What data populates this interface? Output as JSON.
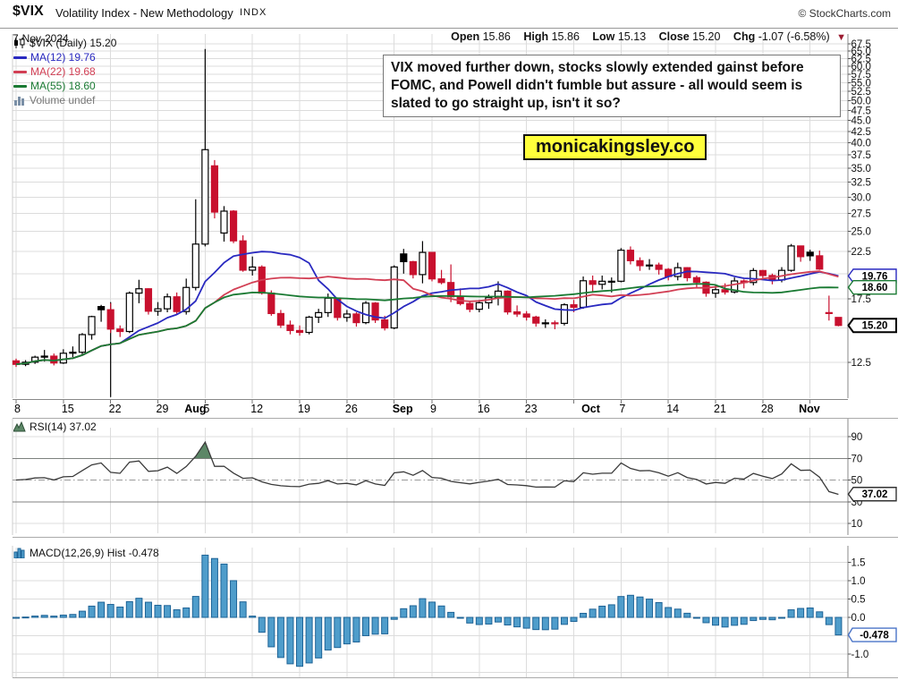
{
  "header": {
    "symbol": "$VIX",
    "name": "Volatility Index - New Methodology",
    "exchange": "INDX",
    "date": "7-Nov-2024",
    "copyright": "© StockCharts.com",
    "quote": {
      "open_label": "Open",
      "open": "15.86",
      "high_label": "High",
      "high": "15.86",
      "low_label": "Low",
      "low": "15.13",
      "close_label": "Close",
      "close": "15.20",
      "chg_label": "Chg",
      "chg": "-1.07 (-6.58%)",
      "direction": "▼"
    }
  },
  "legend": {
    "price": "$VIX (Daily) 15.20",
    "ma12": "MA(12) 19.76",
    "ma22": "MA(22) 19.68",
    "ma55": "MA(55) 18.60",
    "volume": "Volume undef"
  },
  "rsi_label": "RSI(14) 37.02",
  "macd_label": "MACD(12,26,9) Hist -0.478",
  "annotation": {
    "text": "VIX moved further down, stocks slowly extended gainst before FOMC, and Powell didn't fumble but assure - all would seem is slated to go straight up, isn't it so?"
  },
  "badge": {
    "text": "monicakingsley.co"
  },
  "tags": {
    "ma12": "19.76",
    "ma55": "18.60",
    "close": "15.20",
    "rsi": "37.02",
    "macd": "-0.478"
  },
  "colors": {
    "candle_black": "#000000",
    "candle_red": "#c8102e",
    "candle_white": "#ffffff",
    "ma12": "#2929c0",
    "ma22": "#d23f54",
    "ma55": "#1a7a33",
    "rsi_line": "#3a3a3a",
    "rsi_fill": "#5c8767",
    "macd_bar": "#4f9dcb",
    "macd_bar_edge": "#1e6396",
    "grid": "#dcdcdc",
    "axis": "#888888",
    "band_line": "#808080",
    "text": "#111111",
    "tag_close": "#000000",
    "tag_rsi": "#333333",
    "tag_macd": "#4a74c8",
    "badge_bg": "#ffff3b",
    "chg_arrow": "#9b1c31"
  },
  "chart_data": {
    "type": "candlestick",
    "title": "$VIX (Daily)",
    "last_close": 15.2,
    "dates": [
      "Jul 8",
      "Jul 9",
      "Jul 10",
      "Jul 11",
      "Jul 12",
      "Jul 15",
      "Jul 16",
      "Jul 17",
      "Jul 18",
      "Jul 19",
      "Jul 22",
      "Jul 23",
      "Jul 24",
      "Jul 25",
      "Jul 26",
      "Jul 29",
      "Jul 30",
      "Jul 31",
      "Aug 1",
      "Aug 2",
      "Aug 5",
      "Aug 6",
      "Aug 7",
      "Aug 8",
      "Aug 9",
      "Aug 12",
      "Aug 13",
      "Aug 14",
      "Aug 15",
      "Aug 16",
      "Aug 19",
      "Aug 20",
      "Aug 21",
      "Aug 22",
      "Aug 23",
      "Aug 26",
      "Aug 27",
      "Aug 28",
      "Aug 29",
      "Aug 30",
      "Sep 3",
      "Sep 4",
      "Sep 5",
      "Sep 6",
      "Sep 9",
      "Sep 10",
      "Sep 11",
      "Sep 12",
      "Sep 13",
      "Sep 16",
      "Sep 17",
      "Sep 18",
      "Sep 19",
      "Sep 20",
      "Sep 23",
      "Sep 24",
      "Sep 25",
      "Sep 26",
      "Sep 27",
      "Sep 30",
      "Oct 1",
      "Oct 2",
      "Oct 3",
      "Oct 4",
      "Oct 7",
      "Oct 8",
      "Oct 9",
      "Oct 10",
      "Oct 11",
      "Oct 14",
      "Oct 15",
      "Oct 16",
      "Oct 17",
      "Oct 18",
      "Oct 21",
      "Oct 22",
      "Oct 23",
      "Oct 24",
      "Oct 25",
      "Oct 28",
      "Oct 29",
      "Oct 30",
      "Oct 31",
      "Nov 1",
      "Nov 4",
      "Nov 5",
      "Nov 6",
      "Nov 7"
    ],
    "candles": [
      [
        12.6,
        12.75,
        12.2,
        12.37
      ],
      [
        12.37,
        12.65,
        12.25,
        12.51
      ],
      [
        12.51,
        12.95,
        12.4,
        12.85
      ],
      [
        12.85,
        13.35,
        12.55,
        12.92
      ],
      [
        12.92,
        13.1,
        12.3,
        12.46
      ],
      [
        12.46,
        13.4,
        12.4,
        13.12
      ],
      [
        13.12,
        13.6,
        12.85,
        13.19
      ],
      [
        13.19,
        14.6,
        13.0,
        14.48
      ],
      [
        14.48,
        16.0,
        14.1,
        15.93
      ],
      [
        16.8,
        16.95,
        15.5,
        16.52
      ],
      [
        16.52,
        17.1,
        14.6,
        14.91
      ],
      [
        14.91,
        15.2,
        14.3,
        14.72
      ],
      [
        14.72,
        18.2,
        14.6,
        18.04
      ],
      [
        18.04,
        19.36,
        17.1,
        18.46
      ],
      [
        18.46,
        18.5,
        16.1,
        16.39
      ],
      [
        16.39,
        17.2,
        16.0,
        16.6
      ],
      [
        16.6,
        18.0,
        16.3,
        17.69
      ],
      [
        17.69,
        18.1,
        16.1,
        16.36
      ],
      [
        16.36,
        19.48,
        16.1,
        18.59
      ],
      [
        18.59,
        29.66,
        18.3,
        23.39
      ],
      [
        23.39,
        65.73,
        23.1,
        38.57
      ],
      [
        35.4,
        36.5,
        26.8,
        27.71
      ],
      [
        24.8,
        28.6,
        23.7,
        27.85
      ],
      [
        27.85,
        28.0,
        23.5,
        23.79
      ],
      [
        23.79,
        24.5,
        20.2,
        20.37
      ],
      [
        20.37,
        21.9,
        19.8,
        20.71
      ],
      [
        20.71,
        20.9,
        17.9,
        18.04
      ],
      [
        18.04,
        18.3,
        16.0,
        16.19
      ],
      [
        16.19,
        16.5,
        15.0,
        15.23
      ],
      [
        15.23,
        15.6,
        14.5,
        14.8
      ],
      [
        14.8,
        15.2,
        14.4,
        14.65
      ],
      [
        14.65,
        16.0,
        14.5,
        15.88
      ],
      [
        15.88,
        16.6,
        15.4,
        16.27
      ],
      [
        16.27,
        18.0,
        15.9,
        17.56
      ],
      [
        17.56,
        17.6,
        15.6,
        15.86
      ],
      [
        15.86,
        16.5,
        15.5,
        16.15
      ],
      [
        16.15,
        16.3,
        15.1,
        15.43
      ],
      [
        15.43,
        17.3,
        15.3,
        17.11
      ],
      [
        17.11,
        17.2,
        15.4,
        15.65
      ],
      [
        15.65,
        16.0,
        14.8,
        15.0
      ],
      [
        15.0,
        20.9,
        14.9,
        20.72
      ],
      [
        22.2,
        22.8,
        20.0,
        21.31
      ],
      [
        21.31,
        21.4,
        19.5,
        19.9
      ],
      [
        19.9,
        23.76,
        19.0,
        22.38
      ],
      [
        22.38,
        22.4,
        19.2,
        19.45
      ],
      [
        19.45,
        20.4,
        18.9,
        19.08
      ],
      [
        19.08,
        21.0,
        17.2,
        17.69
      ],
      [
        17.69,
        18.5,
        16.9,
        17.07
      ],
      [
        17.07,
        17.3,
        16.3,
        16.56
      ],
      [
        16.56,
        17.4,
        16.3,
        17.14
      ],
      [
        17.14,
        17.9,
        16.6,
        17.61
      ],
      [
        17.61,
        19.2,
        16.9,
        18.23
      ],
      [
        18.23,
        18.3,
        16.1,
        16.33
      ],
      [
        16.33,
        16.9,
        15.9,
        16.15
      ],
      [
        16.15,
        16.4,
        15.6,
        15.89
      ],
      [
        15.89,
        16.0,
        15.1,
        15.39
      ],
      [
        15.39,
        15.7,
        15.0,
        15.41
      ],
      [
        15.41,
        15.6,
        14.9,
        15.37
      ],
      [
        15.37,
        17.1,
        15.2,
        16.96
      ],
      [
        16.96,
        17.4,
        16.3,
        16.73
      ],
      [
        16.73,
        19.7,
        16.6,
        19.26
      ],
      [
        19.26,
        19.8,
        18.2,
        18.9
      ],
      [
        18.9,
        19.8,
        18.4,
        19.21
      ],
      [
        19.21,
        19.6,
        18.1,
        19.21
      ],
      [
        19.21,
        22.9,
        19.1,
        22.64
      ],
      [
        22.64,
        23.1,
        21.0,
        21.42
      ],
      [
        21.42,
        21.8,
        20.3,
        20.86
      ],
      [
        20.86,
        21.6,
        20.4,
        20.93
      ],
      [
        20.93,
        21.2,
        19.9,
        20.46
      ],
      [
        20.46,
        20.6,
        19.3,
        19.7
      ],
      [
        19.7,
        21.2,
        19.3,
        20.64
      ],
      [
        20.64,
        20.7,
        19.2,
        19.58
      ],
      [
        19.58,
        19.8,
        18.6,
        19.11
      ],
      [
        19.11,
        19.2,
        17.7,
        18.03
      ],
      [
        18.03,
        18.8,
        17.6,
        18.37
      ],
      [
        18.37,
        19.0,
        17.9,
        18.15
      ],
      [
        18.15,
        19.6,
        18.0,
        19.24
      ],
      [
        19.24,
        19.4,
        18.5,
        19.08
      ],
      [
        19.08,
        20.6,
        18.8,
        20.33
      ],
      [
        20.33,
        20.4,
        19.5,
        19.8
      ],
      [
        19.8,
        20.0,
        18.9,
        19.34
      ],
      [
        19.34,
        20.7,
        19.1,
        20.35
      ],
      [
        20.35,
        23.4,
        20.2,
        23.16
      ],
      [
        23.16,
        23.2,
        21.3,
        21.88
      ],
      [
        22.4,
        22.7,
        21.4,
        21.98
      ],
      [
        21.98,
        22.6,
        20.4,
        20.49
      ],
      [
        16.2,
        17.8,
        15.6,
        16.27
      ],
      [
        15.86,
        15.86,
        15.13,
        15.2
      ]
    ],
    "overlays": [
      {
        "name": "MA(12)",
        "period": 12,
        "value": 19.76
      },
      {
        "name": "MA(22)",
        "period": 22,
        "value": 19.68
      },
      {
        "name": "MA(55)",
        "period": 55,
        "value": 18.6
      }
    ],
    "event_line": {
      "x_index": 10,
      "top_value": 17.2,
      "bottom_value": 10.4
    },
    "x_ticks": [
      {
        "i": 0,
        "label": "8"
      },
      {
        "i": 5,
        "label": "15"
      },
      {
        "i": 10,
        "label": "22"
      },
      {
        "i": 15,
        "label": "29"
      },
      {
        "i": 18,
        "label": "Aug",
        "bold": true
      },
      {
        "i": 20,
        "label": "5"
      },
      {
        "i": 25,
        "label": "12"
      },
      {
        "i": 30,
        "label": "19"
      },
      {
        "i": 35,
        "label": "26"
      },
      {
        "i": 40,
        "label": "Sep",
        "bold": true
      },
      {
        "i": 44,
        "label": "9"
      },
      {
        "i": 49,
        "label": "16"
      },
      {
        "i": 54,
        "label": "23"
      },
      {
        "i": 60,
        "label": "Oct",
        "bold": true
      },
      {
        "i": 64,
        "label": "7"
      },
      {
        "i": 69,
        "label": "14"
      },
      {
        "i": 74,
        "label": "21"
      },
      {
        "i": 79,
        "label": "28"
      },
      {
        "i": 83,
        "label": "Nov",
        "bold": true
      }
    ],
    "week_gridlines": [
      0,
      5,
      10,
      15,
      20,
      25,
      30,
      35,
      40,
      44,
      49,
      54,
      59,
      64,
      69,
      74,
      79,
      84
    ],
    "price_ticks": [
      {
        "v": 67.5,
        "label": "67.5"
      },
      {
        "v": 65.0,
        "label": "65.0"
      },
      {
        "v": 62.5,
        "label": "62.5"
      },
      {
        "v": 60.0,
        "label": "60.0"
      },
      {
        "v": 57.5,
        "label": "57.5"
      },
      {
        "v": 55.0,
        "label": "55.0"
      },
      {
        "v": 52.5,
        "label": "52.5"
      },
      {
        "v": 50.0,
        "label": "50.0"
      },
      {
        "v": 47.5,
        "label": "47.5"
      },
      {
        "v": 45.0,
        "label": "45.0"
      },
      {
        "v": 42.5,
        "label": "42.5"
      },
      {
        "v": 40.0,
        "label": "40.0"
      },
      {
        "v": 37.5,
        "label": "37.5"
      },
      {
        "v": 35.0,
        "label": "35.0"
      },
      {
        "v": 32.5,
        "label": "32.5"
      },
      {
        "v": 30.0,
        "label": "30.0"
      },
      {
        "v": 27.5,
        "label": "27.5"
      },
      {
        "v": 25.0,
        "label": "25.0"
      },
      {
        "v": 22.5,
        "label": "22.5"
      },
      {
        "v": 20.0,
        "label": ""
      },
      {
        "v": 17.5,
        "label": "17.5"
      },
      {
        "v": 15.0,
        "label": ""
      },
      {
        "v": 12.5,
        "label": "12.5"
      }
    ],
    "rsi": {
      "period": 14,
      "last": 37.02,
      "overbought": 70,
      "oversold": 30,
      "mid": 50,
      "ticks": [
        {
          "v": 90,
          "label": "90"
        },
        {
          "v": 70,
          "label": "70",
          "line": "solid"
        },
        {
          "v": 50,
          "label": "50",
          "line": "dashdot"
        },
        {
          "v": 30,
          "label": "30",
          "line": "solid"
        },
        {
          "v": 10,
          "label": "10"
        }
      ]
    },
    "macd": {
      "fast": 12,
      "slow": 26,
      "signal": 9,
      "hist_last": -0.478,
      "ticks": [
        {
          "v": 1.5,
          "label": "1.5"
        },
        {
          "v": 1.0,
          "label": "1.0"
        },
        {
          "v": 0.5,
          "label": "0.5"
        },
        {
          "v": 0.0,
          "label": "0.0"
        },
        {
          "v": -0.5,
          "label": ""
        },
        {
          "v": -1.0,
          "label": "-1.0"
        },
        {
          "v": -1.5,
          "label": ""
        }
      ]
    }
  }
}
